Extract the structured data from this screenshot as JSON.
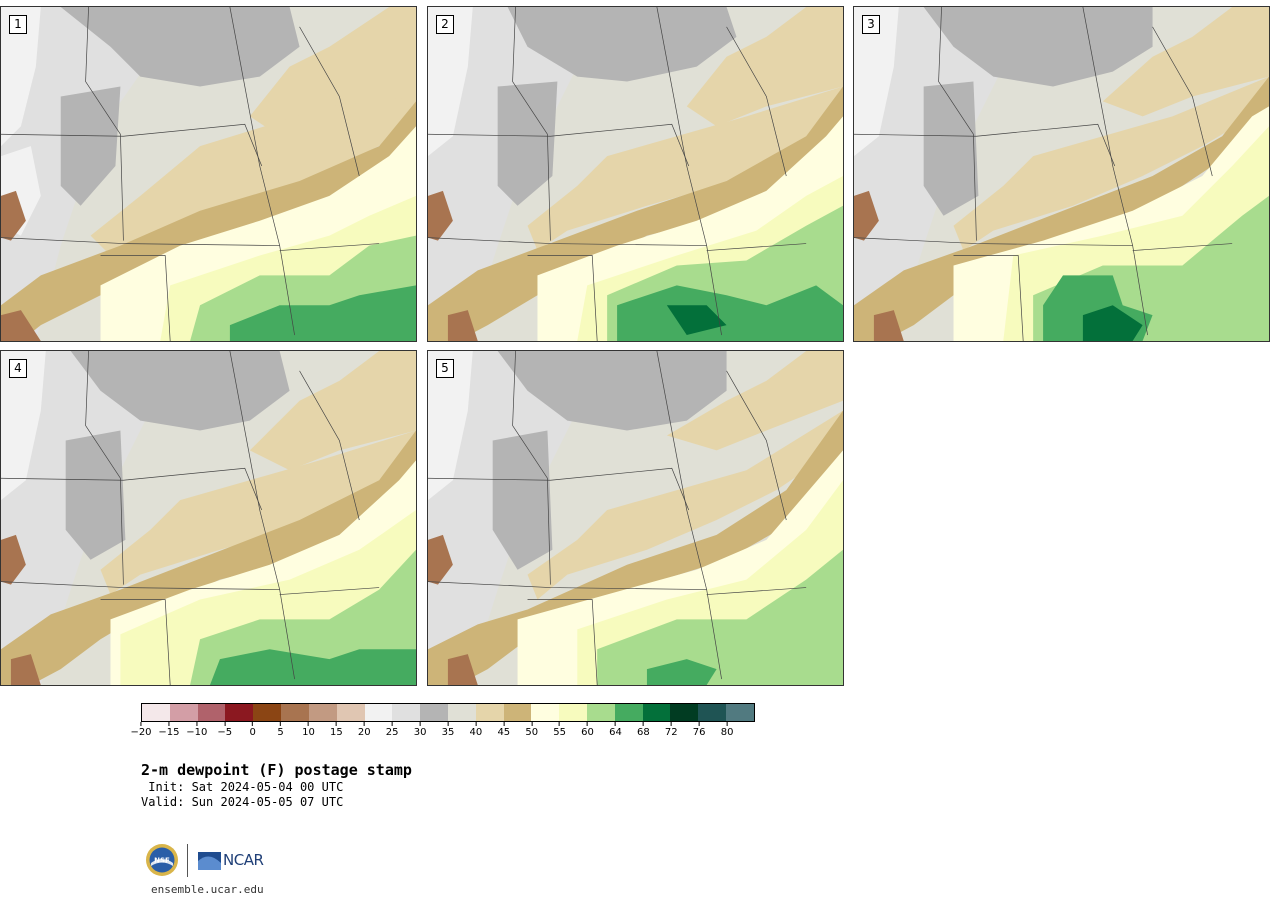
{
  "panels": [
    {
      "label": "1"
    },
    {
      "label": "2"
    },
    {
      "label": "3"
    },
    {
      "label": "4"
    },
    {
      "label": "5"
    }
  ],
  "colorbar": {
    "colors": [
      "#f4e8ea",
      "#d39ea6",
      "#b0626b",
      "#8b1820",
      "#8b4514",
      "#a87450",
      "#c29a82",
      "#e0c6b2",
      "#f2f2f2",
      "#e0e0e0",
      "#b4b4b4",
      "#e0e0d6",
      "#e5d5aa",
      "#cdb478",
      "#fffee0",
      "#f7fbbe",
      "#a8dc8e",
      "#45ab60",
      "#03703a",
      "#013c22",
      "#1f5454",
      "#517a80"
    ],
    "tick_labels": [
      "−20",
      "−15",
      "−10",
      "−5",
      "0",
      "5",
      "10",
      "15",
      "20",
      "25",
      "30",
      "35",
      "40",
      "45",
      "50",
      "55",
      "60",
      "64",
      "68",
      "72",
      "76",
      "80"
    ]
  },
  "title": "2-m dewpoint (F) postage stamp",
  "init": " Init: Sat 2024-05-04 00 UTC",
  "valid": "Valid: Sun 2024-05-05 07 UTC",
  "logos": {
    "nsf": "NSF",
    "ncar": "NCAR"
  },
  "site": "ensemble.ucar.edu"
}
